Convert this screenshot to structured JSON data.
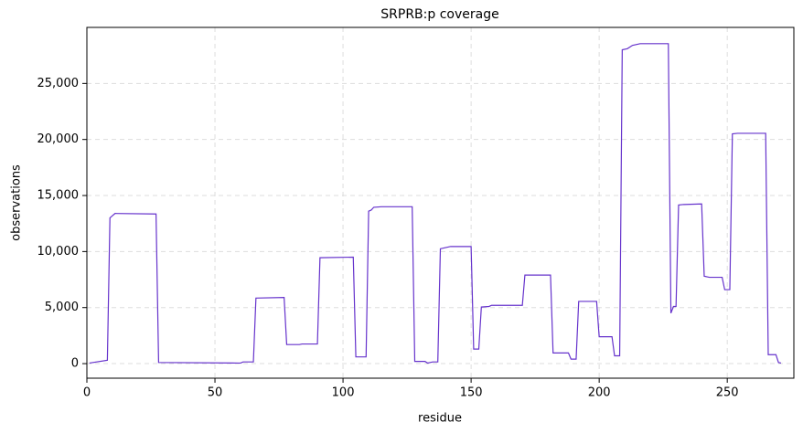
{
  "chart_data": {
    "type": "line",
    "title": "SRPRB:p coverage",
    "xlabel": "residue",
    "ylabel": "observations",
    "xlim": [
      0,
      276
    ],
    "ylim": [
      -1300,
      30000
    ],
    "xticks": [
      0,
      50,
      100,
      150,
      200,
      250
    ],
    "yticks": [
      0,
      {
        "value": 5000,
        "label": "5,000"
      },
      {
        "value": 10000,
        "label": "10,000"
      },
      {
        "value": 15000,
        "label": "15,000"
      },
      {
        "value": 20000,
        "label": "20,000"
      },
      {
        "value": 25000,
        "label": "25,000"
      }
    ],
    "grid": true,
    "series": [
      {
        "name": "coverage",
        "color": "#6633cc",
        "x": [
          1,
          8,
          9,
          10,
          11,
          27,
          28,
          59,
          60,
          61,
          65,
          66,
          77,
          78,
          83,
          84,
          90,
          91,
          104,
          105,
          109,
          110,
          111,
          112,
          115,
          127,
          128,
          132,
          133,
          135,
          137,
          138,
          140,
          142,
          150,
          151,
          153,
          154,
          157,
          158,
          170,
          171,
          181,
          182,
          188,
          189,
          191,
          192,
          199,
          200,
          205,
          206,
          208,
          209,
          211,
          213,
          216,
          227,
          228,
          229,
          230,
          231,
          233,
          240,
          241,
          243,
          248,
          249,
          251,
          252,
          254,
          265,
          266,
          269,
          270,
          271
        ],
        "values": [
          50,
          300,
          13000,
          13200,
          13400,
          13350,
          100,
          50,
          50,
          150,
          150,
          5850,
          5900,
          1700,
          1700,
          1750,
          1750,
          9450,
          9500,
          600,
          600,
          13600,
          13700,
          13950,
          14000,
          14000,
          200,
          200,
          50,
          150,
          150,
          10250,
          10350,
          10450,
          10450,
          1300,
          1300,
          5050,
          5100,
          5200,
          5200,
          7900,
          7900,
          950,
          950,
          400,
          400,
          5550,
          5550,
          2400,
          2400,
          700,
          700,
          28000,
          28100,
          28400,
          28550,
          28550,
          4500,
          5100,
          5100,
          14150,
          14200,
          14250,
          7800,
          7700,
          7700,
          6600,
          6600,
          20500,
          20550,
          20550,
          800,
          800,
          100,
          50
        ]
      }
    ]
  }
}
